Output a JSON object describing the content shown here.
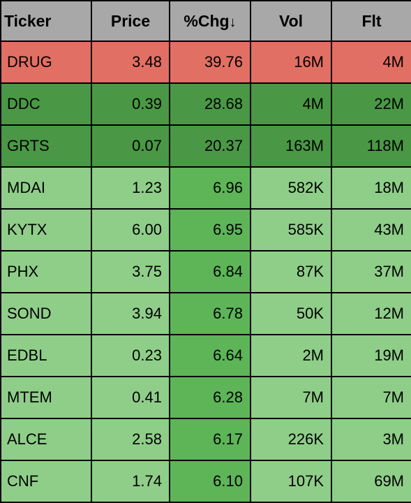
{
  "table": {
    "header_bg": "#a8a8a8",
    "header_text_color": "#000000",
    "border_color": "#000000",
    "sort_arrow": "↓",
    "columns": [
      {
        "key": "ticker",
        "label": "Ticker",
        "align": "left"
      },
      {
        "key": "price",
        "label": "Price",
        "align": "right"
      },
      {
        "key": "chg",
        "label": "%Chg",
        "align": "right",
        "sorted": true
      },
      {
        "key": "vol",
        "label": "Vol",
        "align": "right"
      },
      {
        "key": "flt",
        "label": "Flt",
        "align": "right"
      }
    ],
    "colors": {
      "red": "#e26f63",
      "dark_green": "#4a9845",
      "mid_green": "#5db557",
      "light_green": "#8fce89"
    },
    "rows": [
      {
        "ticker": "DRUG",
        "price": "3.48",
        "chg": "39.76",
        "vol": "16M",
        "flt": "4M",
        "bg": {
          "ticker": "red",
          "price": "red",
          "chg": "red",
          "vol": "red",
          "flt": "red"
        }
      },
      {
        "ticker": "DDC",
        "price": "0.39",
        "chg": "28.68",
        "vol": "4M",
        "flt": "22M",
        "bg": {
          "ticker": "dark_green",
          "price": "dark_green",
          "chg": "dark_green",
          "vol": "dark_green",
          "flt": "dark_green"
        }
      },
      {
        "ticker": "GRTS",
        "price": "0.07",
        "chg": "20.37",
        "vol": "163M",
        "flt": "118M",
        "bg": {
          "ticker": "dark_green",
          "price": "dark_green",
          "chg": "dark_green",
          "vol": "dark_green",
          "flt": "dark_green"
        }
      },
      {
        "ticker": "MDAI",
        "price": "1.23",
        "chg": "6.96",
        "vol": "582K",
        "flt": "18M",
        "bg": {
          "ticker": "light_green",
          "price": "light_green",
          "chg": "mid_green",
          "vol": "light_green",
          "flt": "light_green"
        }
      },
      {
        "ticker": "KYTX",
        "price": "6.00",
        "chg": "6.95",
        "vol": "585K",
        "flt": "43M",
        "bg": {
          "ticker": "light_green",
          "price": "light_green",
          "chg": "mid_green",
          "vol": "light_green",
          "flt": "light_green"
        }
      },
      {
        "ticker": "PHX",
        "price": "3.75",
        "chg": "6.84",
        "vol": "87K",
        "flt": "37M",
        "bg": {
          "ticker": "light_green",
          "price": "light_green",
          "chg": "mid_green",
          "vol": "light_green",
          "flt": "light_green"
        }
      },
      {
        "ticker": "SOND",
        "price": "3.94",
        "chg": "6.78",
        "vol": "50K",
        "flt": "12M",
        "bg": {
          "ticker": "light_green",
          "price": "light_green",
          "chg": "mid_green",
          "vol": "light_green",
          "flt": "light_green"
        }
      },
      {
        "ticker": "EDBL",
        "price": "0.23",
        "chg": "6.64",
        "vol": "2M",
        "flt": "19M",
        "bg": {
          "ticker": "light_green",
          "price": "light_green",
          "chg": "mid_green",
          "vol": "light_green",
          "flt": "light_green"
        }
      },
      {
        "ticker": "MTEM",
        "price": "0.41",
        "chg": "6.28",
        "vol": "7M",
        "flt": "7M",
        "bg": {
          "ticker": "light_green",
          "price": "light_green",
          "chg": "mid_green",
          "vol": "light_green",
          "flt": "light_green"
        }
      },
      {
        "ticker": "ALCE",
        "price": "2.58",
        "chg": "6.17",
        "vol": "226K",
        "flt": "3M",
        "bg": {
          "ticker": "light_green",
          "price": "light_green",
          "chg": "mid_green",
          "vol": "light_green",
          "flt": "light_green"
        }
      },
      {
        "ticker": "CNF",
        "price": "1.74",
        "chg": "6.10",
        "vol": "107K",
        "flt": "69M",
        "bg": {
          "ticker": "light_green",
          "price": "light_green",
          "chg": "mid_green",
          "vol": "light_green",
          "flt": "light_green"
        }
      }
    ]
  }
}
